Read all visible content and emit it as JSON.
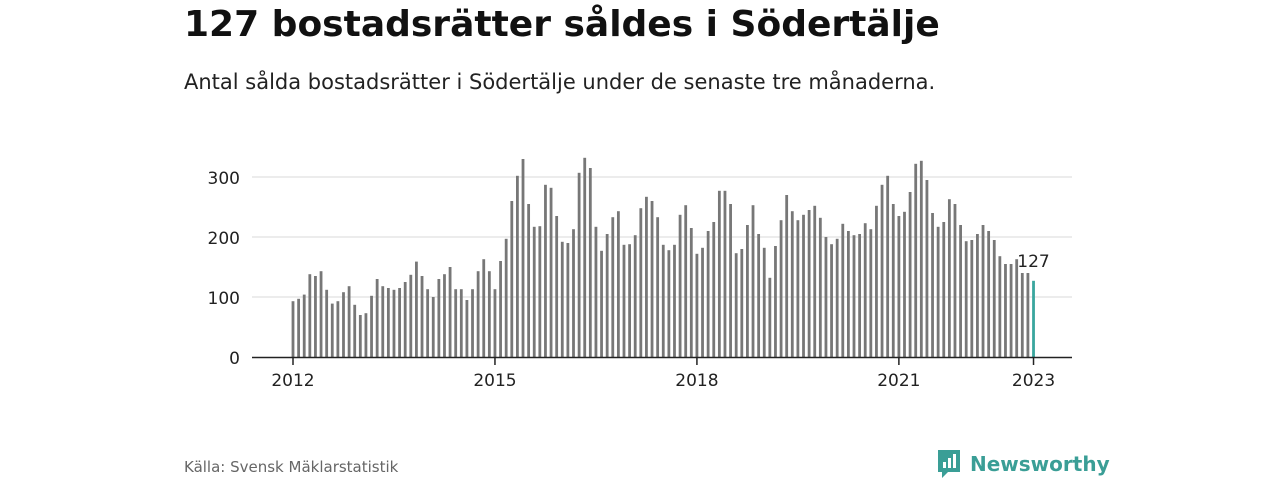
{
  "title": "127 bostadsrätter såldes i Södertälje",
  "subtitle": "Antal sålda bostadsrätter i Södertälje under de senaste tre månaderna.",
  "source": "Källa: Svensk Mäklarstatistik",
  "brand": {
    "name": "Newsworthy",
    "icon": "newsworthy-logo-icon",
    "color": "#3a9e96"
  },
  "chart_data": {
    "type": "bar",
    "title": "",
    "xlabel": "",
    "ylabel": "",
    "ylim": [
      0,
      340
    ],
    "yticks": [
      0,
      100,
      200,
      300
    ],
    "xticks": [
      "2012",
      "2015",
      "2018",
      "2021",
      "2023"
    ],
    "grid": true,
    "bar_color": "#777777",
    "highlight_color": "#3aa69e",
    "highlight_label": "127",
    "start": "2012-01",
    "values": [
      93,
      97,
      104,
      138,
      135,
      143,
      112,
      89,
      93,
      108,
      118,
      87,
      70,
      73,
      102,
      130,
      118,
      115,
      112,
      115,
      125,
      137,
      159,
      135,
      113,
      100,
      130,
      138,
      150,
      113,
      113,
      95,
      113,
      143,
      163,
      143,
      113,
      160,
      197,
      260,
      302,
      330,
      255,
      217,
      218,
      287,
      282,
      235,
      192,
      190,
      213,
      307,
      332,
      315,
      217,
      177,
      205,
      233,
      243,
      187,
      188,
      203,
      248,
      267,
      260,
      233,
      187,
      178,
      187,
      237,
      253,
      215,
      172,
      182,
      210,
      225,
      277,
      277,
      255,
      173,
      180,
      220,
      253,
      205,
      182,
      132,
      185,
      228,
      270,
      243,
      228,
      237,
      245,
      252,
      232,
      200,
      188,
      197,
      222,
      210,
      203,
      205,
      223,
      213,
      252,
      287,
      302,
      255,
      235,
      242,
      275,
      322,
      327,
      295,
      240,
      217,
      225,
      263,
      255,
      220,
      193,
      195,
      205,
      220,
      210,
      195,
      168,
      155,
      155,
      163,
      140,
      140,
      127
    ]
  }
}
